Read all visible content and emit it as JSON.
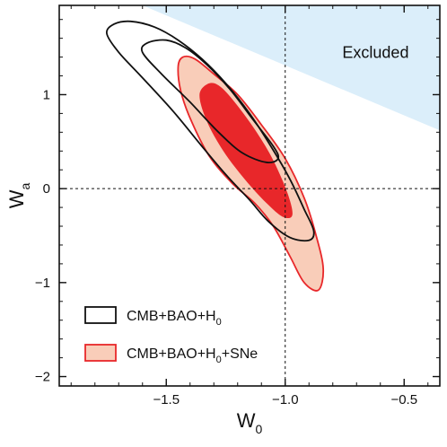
{
  "chart_data": {
    "type": "contour",
    "xlabel": {
      "main": "W",
      "sub": "0"
    },
    "ylabel": {
      "main": "W",
      "sub": "a"
    },
    "xlim": [
      -1.95,
      -0.35
    ],
    "ylim": [
      -2.1,
      1.95
    ],
    "xticks": [
      {
        "value": -1.5,
        "label": "−1.5"
      },
      {
        "value": -1.0,
        "label": "−1.0"
      },
      {
        "value": -0.5,
        "label": "−0.5"
      }
    ],
    "yticks": [
      {
        "value": 1,
        "label": "1"
      },
      {
        "value": 0,
        "label": "0"
      },
      {
        "value": -1,
        "label": "−1"
      },
      {
        "value": -2,
        "label": "−2"
      }
    ],
    "reference_lines": {
      "x": -1.0,
      "y": 0.0
    },
    "excluded_region": {
      "label": "Excluded",
      "color": "#dbeefa",
      "boundary": [
        [
          -1.6,
          1.95
        ],
        [
          -0.35,
          0.62
        ]
      ]
    },
    "series": [
      {
        "name": "CMB+BAO+H0",
        "legend": {
          "main": "CMB+BAO+H",
          "sub": "0",
          "tail": ""
        },
        "style": "outline",
        "color": "#111111",
        "contours": [
          {
            "level": "95%",
            "points": [
              [
                -1.72,
                1.75
              ],
              [
                -1.65,
                1.78
              ],
              [
                -1.55,
                1.72
              ],
              [
                -1.45,
                1.58
              ],
              [
                -1.35,
                1.38
              ],
              [
                -1.25,
                1.12
              ],
              [
                -1.15,
                0.8
              ],
              [
                -1.06,
                0.45
              ],
              [
                -0.98,
                0.1
              ],
              [
                -0.92,
                -0.22
              ],
              [
                -0.88,
                -0.45
              ],
              [
                -0.9,
                -0.55
              ],
              [
                -0.98,
                -0.52
              ],
              [
                -1.07,
                -0.35
              ],
              [
                -1.15,
                -0.12
              ],
              [
                -1.25,
                0.15
              ],
              [
                -1.35,
                0.45
              ],
              [
                -1.47,
                0.82
              ],
              [
                -1.6,
                1.18
              ],
              [
                -1.7,
                1.45
              ],
              [
                -1.75,
                1.65
              ]
            ]
          },
          {
            "level": "68%",
            "points": [
              [
                -1.58,
                1.55
              ],
              [
                -1.5,
                1.58
              ],
              [
                -1.42,
                1.5
              ],
              [
                -1.33,
                1.32
              ],
              [
                -1.23,
                1.05
              ],
              [
                -1.14,
                0.75
              ],
              [
                -1.05,
                0.45
              ],
              [
                -1.03,
                0.32
              ],
              [
                -1.08,
                0.28
              ],
              [
                -1.18,
                0.38
              ],
              [
                -1.28,
                0.6
              ],
              [
                -1.4,
                0.92
              ],
              [
                -1.52,
                1.22
              ],
              [
                -1.6,
                1.45
              ]
            ]
          }
        ]
      },
      {
        "name": "CMB+BAO+H0+SNe",
        "legend": {
          "main": "CMB+BAO+H",
          "sub": "0",
          "tail": "+SNe"
        },
        "style": "filled",
        "color": "#e8272a",
        "fill_light": "#f9cdb9",
        "contours": [
          {
            "level": "95%",
            "points": [
              [
                -1.43,
                1.4
              ],
              [
                -1.38,
                1.38
              ],
              [
                -1.3,
                1.22
              ],
              [
                -1.2,
                1.0
              ],
              [
                -1.1,
                0.68
              ],
              [
                -1.0,
                0.32
              ],
              [
                -0.92,
                -0.1
              ],
              [
                -0.87,
                -0.5
              ],
              [
                -0.84,
                -0.85
              ],
              [
                -0.86,
                -1.08
              ],
              [
                -0.92,
                -1.0
              ],
              [
                -0.98,
                -0.72
              ],
              [
                -1.05,
                -0.4
              ],
              [
                -1.13,
                -0.15
              ],
              [
                -1.22,
                0.05
              ],
              [
                -1.32,
                0.35
              ],
              [
                -1.4,
                0.75
              ],
              [
                -1.44,
                1.05
              ],
              [
                -1.45,
                1.3
              ]
            ]
          },
          {
            "level": "68%",
            "points": [
              [
                -1.32,
                1.12
              ],
              [
                -1.27,
                1.08
              ],
              [
                -1.2,
                0.88
              ],
              [
                -1.12,
                0.6
              ],
              [
                -1.05,
                0.3
              ],
              [
                -0.99,
                -0.05
              ],
              [
                -0.97,
                -0.28
              ],
              [
                -1.01,
                -0.3
              ],
              [
                -1.08,
                -0.15
              ],
              [
                -1.17,
                0.1
              ],
              [
                -1.26,
                0.4
              ],
              [
                -1.33,
                0.72
              ],
              [
                -1.36,
                1.0
              ]
            ]
          }
        ]
      }
    ]
  }
}
